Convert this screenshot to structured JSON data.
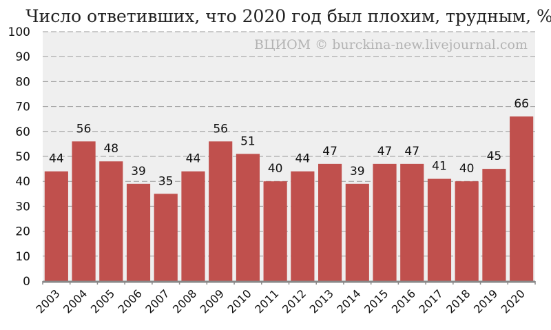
{
  "chart_data": {
    "type": "bar",
    "title": "Число ответивших, что 2020 год был плохим, трудным, %",
    "watermark": "ВЦИОМ © burckina-new.livejournal.com",
    "categories": [
      "2003",
      "2004",
      "2005",
      "2006",
      "2007",
      "2008",
      "2009",
      "2010",
      "2011",
      "2012",
      "2013",
      "2014",
      "2015",
      "2016",
      "2017",
      "2018",
      "2019",
      "2020"
    ],
    "values": [
      44,
      56,
      48,
      39,
      35,
      44,
      56,
      51,
      40,
      44,
      47,
      39,
      47,
      47,
      41,
      40,
      45,
      66
    ],
    "ylim": [
      0,
      100
    ],
    "yticks": [
      0,
      10,
      20,
      30,
      40,
      50,
      60,
      70,
      80,
      90,
      100
    ],
    "grid": true,
    "colors": {
      "bar": "#c0504d",
      "plot_bg": "#efefef",
      "grid": "#9a9a9a"
    }
  }
}
